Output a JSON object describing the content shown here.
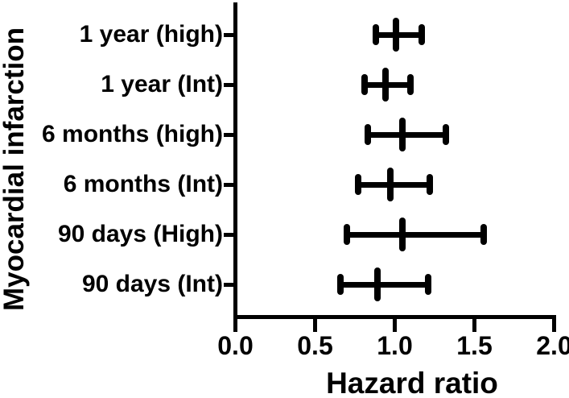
{
  "chart_data": {
    "type": "scatter",
    "subtype": "horizontal-error-bar-forest-plot",
    "xlabel": "Hazard ratio",
    "ylabel": "Myocardial infarction",
    "xlim": [
      0.0,
      2.0
    ],
    "xtick_labels": [
      "0.0",
      "0.5",
      "1.0",
      "1.5",
      "2.0"
    ],
    "xtick_values": [
      0.0,
      0.5,
      1.0,
      1.5,
      2.0
    ],
    "grid": false,
    "legend": false,
    "categories": [
      "1 year (high)",
      "1 year (Int)",
      "6 months (high)",
      "6 months (Int)",
      "90 days (High)",
      "90 days (Int)"
    ],
    "points": [
      {
        "category": "1 year (high)",
        "hr": 1.01,
        "ci_low": 0.88,
        "ci_high": 1.17
      },
      {
        "category": "1 year (Int)",
        "hr": 0.94,
        "ci_low": 0.81,
        "ci_high": 1.1
      },
      {
        "category": "6 months (high)",
        "hr": 1.05,
        "ci_low": 0.83,
        "ci_high": 1.32
      },
      {
        "category": "6 months (Int)",
        "hr": 0.97,
        "ci_low": 0.77,
        "ci_high": 1.22
      },
      {
        "category": "90 days (High)",
        "hr": 1.05,
        "ci_low": 0.7,
        "ci_high": 1.56
      },
      {
        "category": "90 days (Int)",
        "hr": 0.89,
        "ci_low": 0.66,
        "ci_high": 1.21
      }
    ],
    "colors": {
      "foreground": "#000000",
      "background": "#ffffff"
    }
  }
}
